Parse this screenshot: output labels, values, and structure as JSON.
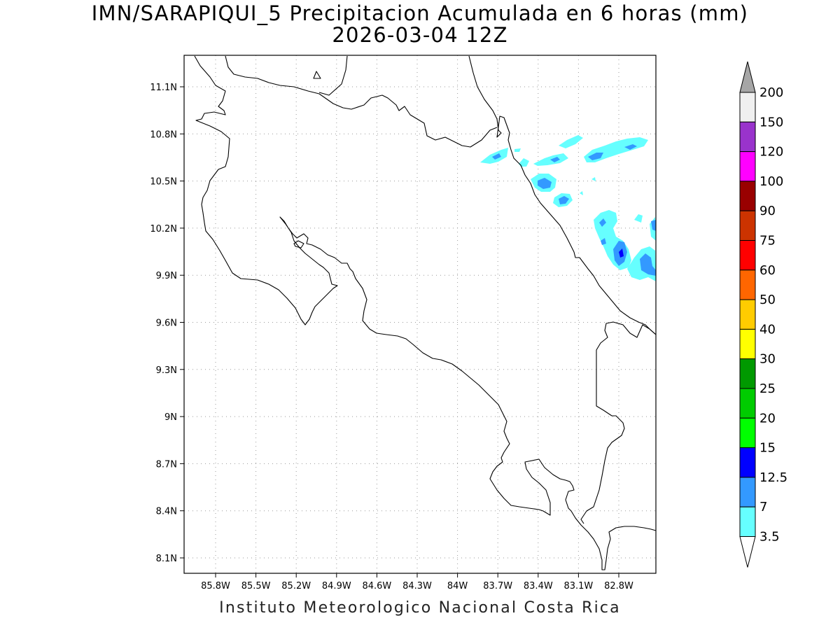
{
  "map": {
    "title_line1": "IMN/SARAPIQUI_5 Precipitacion Acumulada en 6 horas (mm)",
    "title_line2": "2026-03-04 12Z",
    "footer": "Instituto Meteorologico Nacional Costa Rica",
    "lon_ticks": [
      "85.8W",
      "85.5W",
      "85.2W",
      "84.9W",
      "84.6W",
      "84.3W",
      "84W",
      "83.7W",
      "83.4W",
      "83.1W",
      "82.8W"
    ],
    "lat_ticks": [
      "11.1N",
      "10.8N",
      "10.5N",
      "10.2N",
      "9.9N",
      "9.6N",
      "9.3N",
      "9N",
      "8.7N",
      "8.4N",
      "8.1N"
    ],
    "coastline_color": "#000000",
    "grid": "dotted"
  },
  "colorbar": {
    "levels": [
      "3.5",
      "7",
      "12.5",
      "15",
      "20",
      "25",
      "30",
      "40",
      "50",
      "60",
      "75",
      "90",
      "100",
      "120",
      "150",
      "200"
    ],
    "colors": [
      "#66ffff",
      "#3399ff",
      "#0000ff",
      "#00ff00",
      "#00cc00",
      "#009900",
      "#ffff00",
      "#ffcc00",
      "#ff6600",
      "#ff0000",
      "#cc3300",
      "#990000",
      "#ff00ff",
      "#9933cc",
      "#f0f0f0",
      "#a6a6a6"
    ],
    "min_end_color": "#ffffff"
  }
}
